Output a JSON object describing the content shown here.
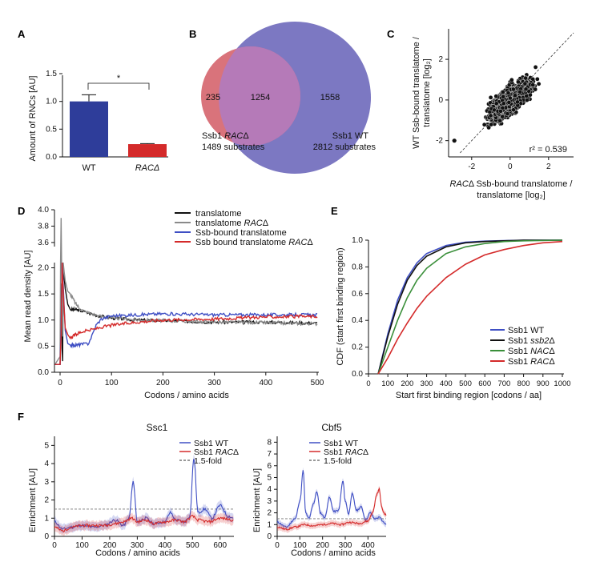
{
  "panels": {
    "A": {
      "label": "A",
      "ylabel": "Amount of RNCs [AU]",
      "significance": "*",
      "yticks": [
        "0.0",
        "0.5",
        "1.0",
        "1.5"
      ],
      "chart_data": {
        "type": "bar",
        "categories": [
          "WT",
          "RACΔ"
        ],
        "values": [
          1.0,
          0.23
        ],
        "errors": [
          0.12,
          0.01
        ],
        "colors": [
          "#2e3d9a",
          "#d42a2a"
        ],
        "ylim": [
          0,
          1.5
        ]
      }
    },
    "B": {
      "label": "B",
      "venn": {
        "left_only": "235",
        "overlap": "1254",
        "right_only": "1558"
      },
      "left_name_pre": "Ssb1 ",
      "left_name_it": "RAC",
      "left_name_post": "Δ",
      "left_count": "1489 substrates",
      "right_name": "Ssb1 WT",
      "right_count": "2812 substrates",
      "colors": {
        "left": "#d9737b",
        "right": "#7c78c2",
        "overlap": "#b57ab8"
      }
    },
    "C": {
      "label": "C",
      "ylabel1": "WT Ssb-bound translatome /",
      "ylabel2": "translatome [log₂]",
      "xlabel1_it": "RAC",
      "xlabel1_rest": "Δ Ssb-bound translatome /",
      "xlabel2": "translatome [log₂]",
      "r2": "r² = 0.539",
      "xticks": [
        "-2",
        "0",
        "2"
      ],
      "yticks": [
        "-2",
        "0",
        "2"
      ],
      "chart_data": {
        "type": "scatter",
        "xlim": [
          -3.2,
          3.3
        ],
        "ylim": [
          -2.8,
          3.5
        ],
        "n_points": 1254,
        "r2": 0.539,
        "outlier": [
          -2.9,
          -2.0
        ]
      }
    },
    "D": {
      "label": "D",
      "ylabel": "Mean read density [AU]",
      "xlabel": "Codons / amino acids",
      "xticks": [
        "0",
        "100",
        "200",
        "300",
        "400",
        "500"
      ],
      "yticks_low": [
        "0.0",
        "0.5",
        "1.0",
        "1.5",
        "2.0"
      ],
      "yticks_high": [
        "3.6",
        "3.8",
        "4.0"
      ],
      "legend": [
        {
          "pre": "translatome",
          "it": "",
          "post": ""
        },
        {
          "pre": "translatome ",
          "it": "RAC",
          "post": "Δ"
        },
        {
          "pre": "Ssb-bound translatome",
          "it": "",
          "post": ""
        },
        {
          "pre": "Ssb bound translatome ",
          "it": "RAC",
          "post": "Δ"
        }
      ],
      "chart_data": {
        "type": "line",
        "xlim": [
          -10,
          500
        ],
        "series": [
          {
            "color": "#111111",
            "x": [
              -10,
              0,
              2,
              4,
              6,
              10,
              15,
              20,
              30,
              40,
              60,
              80,
              100,
              150,
              200,
              300,
              400,
              500
            ],
            "y": [
              0.15,
              0.15,
              1.1,
              2.3,
              2.0,
              1.6,
              1.3,
              1.2,
              1.2,
              1.18,
              1.12,
              1.07,
              1.04,
              1.0,
              0.99,
              0.96,
              0.96,
              0.94
            ]
          },
          {
            "color": "#8a8a8a",
            "x": [
              -10,
              0,
              2,
              4,
              6,
              10,
              15,
              20,
              30,
              40,
              60,
              80,
              100,
              150,
              200,
              300,
              400,
              500
            ],
            "y": [
              0.15,
              0.3,
              3.9,
              2.8,
              2.1,
              1.75,
              1.55,
              1.5,
              1.32,
              1.2,
              1.12,
              1.07,
              1.04,
              1.0,
              0.99,
              0.96,
              0.95,
              0.93
            ]
          },
          {
            "color": "#3f4fc4",
            "x": [
              -10,
              0,
              2,
              4,
              6,
              10,
              15,
              20,
              30,
              40,
              55,
              62,
              70,
              80,
              100,
              150,
              200,
              300,
              400,
              500
            ],
            "y": [
              0.15,
              0.15,
              0.9,
              2.1,
              1.7,
              0.8,
              0.55,
              0.52,
              0.52,
              0.53,
              0.55,
              0.7,
              0.9,
              1.02,
              1.08,
              1.1,
              1.12,
              1.1,
              1.1,
              1.1
            ]
          },
          {
            "color": "#d42a2a",
            "x": [
              -10,
              0,
              2,
              4,
              6,
              10,
              15,
              20,
              30,
              40,
              60,
              80,
              100,
              150,
              200,
              300,
              400,
              500
            ],
            "y": [
              0.15,
              0.15,
              0.7,
              2.1,
              1.55,
              0.85,
              0.72,
              0.65,
              0.72,
              0.77,
              0.81,
              0.86,
              0.9,
              0.96,
              1.0,
              1.02,
              1.06,
              1.07
            ]
          }
        ]
      }
    },
    "E": {
      "label": "E",
      "ylabel": "CDF (start first binding region)",
      "xlabel": "Start first binding region [codons / aa]",
      "xticks": [
        "0",
        "100",
        "200",
        "300",
        "400",
        "500",
        "600",
        "700",
        "800",
        "900",
        "1000"
      ],
      "yticks": [
        "0.0",
        "0.2",
        "0.4",
        "0.6",
        "0.8",
        "1.0"
      ],
      "legend": [
        {
          "pre": "Ssb1 WT",
          "it": "",
          "post": ""
        },
        {
          "pre": "Ssb1 ",
          "it": "ssb2",
          "post": "Δ"
        },
        {
          "pre": "Ssb1 ",
          "it": "NAC",
          "post": "Δ"
        },
        {
          "pre": "Ssb1 ",
          "it": "RAC",
          "post": "Δ"
        }
      ],
      "chart_data": {
        "type": "line",
        "xlim": [
          0,
          1000
        ],
        "ylim": [
          0,
          1
        ],
        "series": [
          {
            "color": "#3f4fc4",
            "x": [
              50,
              100,
              150,
              200,
              250,
              300,
              400,
              500,
              600,
              700,
              800,
              1000
            ],
            "y": [
              0,
              0.3,
              0.55,
              0.72,
              0.83,
              0.9,
              0.96,
              0.985,
              0.993,
              0.997,
              1.0,
              1.0
            ]
          },
          {
            "color": "#111111",
            "x": [
              50,
              100,
              150,
              200,
              250,
              300,
              400,
              500,
              600,
              700,
              800,
              1000
            ],
            "y": [
              0,
              0.28,
              0.52,
              0.7,
              0.81,
              0.88,
              0.95,
              0.98,
              0.99,
              0.995,
              1.0,
              1.0
            ]
          },
          {
            "color": "#3a8f3a",
            "x": [
              50,
              100,
              150,
              200,
              250,
              300,
              400,
              500,
              600,
              700,
              800,
              1000
            ],
            "y": [
              0,
              0.2,
              0.4,
              0.57,
              0.7,
              0.79,
              0.9,
              0.95,
              0.975,
              0.99,
              0.995,
              1.0
            ]
          },
          {
            "color": "#d42a2a",
            "x": [
              50,
              100,
              150,
              200,
              250,
              300,
              400,
              500,
              600,
              700,
              800,
              900,
              1000
            ],
            "y": [
              0,
              0.12,
              0.26,
              0.38,
              0.49,
              0.58,
              0.72,
              0.82,
              0.89,
              0.93,
              0.96,
              0.98,
              0.99
            ]
          }
        ]
      }
    },
    "F": {
      "label": "F",
      "left": {
        "title": "Ssc1",
        "ylabel": "Enrichment [AU]",
        "xlabel": "Codons / amino acids",
        "xticks": [
          "0",
          "100",
          "200",
          "300",
          "400",
          "500",
          "600"
        ],
        "yticks": [
          "0",
          "1",
          "2",
          "3",
          "4",
          "5"
        ],
        "legend": [
          {
            "pre": "Ssb1 WT",
            "it": "",
            "post": ""
          },
          {
            "pre": "Ssb1 ",
            "it": "RAC",
            "post": "Δ"
          },
          {
            "pre": "1.5-fold",
            "it": "",
            "post": ""
          }
        ],
        "chart_data": {
          "type": "line",
          "xlim": [
            0,
            650
          ],
          "ylim": [
            0,
            5.5
          ],
          "threshold": 1.5,
          "series": [
            {
              "color": "#3f4fc4",
              "x": [
                0,
                30,
                60,
                100,
                140,
                180,
                220,
                250,
                270,
                285,
                300,
                330,
                360,
                400,
                420,
                440,
                470,
                490,
                505,
                520,
                545,
                570,
                600,
                630,
                650
              ],
              "y": [
                0.8,
                0.4,
                0.5,
                0.6,
                0.5,
                0.6,
                0.9,
                0.6,
                1.0,
                3.0,
                0.8,
                1.0,
                0.7,
                0.8,
                1.3,
                0.9,
                0.8,
                1.1,
                4.3,
                1.3,
                1.5,
                1.0,
                1.7,
                1.1,
                1.0
              ]
            },
            {
              "color": "#d42a2a",
              "x": [
                0,
                30,
                60,
                100,
                140,
                180,
                220,
                250,
                280,
                300,
                330,
                360,
                400,
                440,
                470,
                500,
                520,
                560,
                600,
                650
              ],
              "y": [
                0.5,
                0.3,
                0.5,
                0.6,
                0.6,
                0.6,
                0.7,
                0.8,
                1.0,
                0.8,
                0.9,
                0.7,
                0.8,
                0.9,
                0.8,
                1.1,
                0.9,
                0.8,
                1.0,
                0.9
              ]
            }
          ]
        }
      },
      "right": {
        "title": "Cbf5",
        "ylabel": "Enrichment [AU]",
        "xlabel": "Codons / amino acids",
        "xticks": [
          "0",
          "100",
          "200",
          "300",
          "400"
        ],
        "yticks": [
          "0",
          "1",
          "2",
          "3",
          "4",
          "5",
          "6",
          "7",
          "8"
        ],
        "legend": [
          {
            "pre": "Ssb1 WT",
            "it": "",
            "post": ""
          },
          {
            "pre": "Ssb1 ",
            "it": "RAC",
            "post": "Δ"
          },
          {
            "pre": "1.5-fold",
            "it": "",
            "post": ""
          }
        ],
        "chart_data": {
          "type": "line",
          "xlim": [
            0,
            480
          ],
          "ylim": [
            0,
            8.5
          ],
          "threshold": 1.5,
          "series": [
            {
              "color": "#3f4fc4",
              "x": [
                0,
                40,
                80,
                100,
                115,
                125,
                140,
                160,
                175,
                190,
                210,
                230,
                250,
                270,
                290,
                300,
                315,
                330,
                350,
                370,
                390,
                410,
                430,
                450,
                470,
                480
              ],
              "y": [
                1.2,
                0.8,
                1.5,
                3.0,
                5.6,
                2.0,
                1.5,
                2.8,
                3.8,
                2.0,
                1.6,
                3.3,
                2.1,
                2.2,
                4.7,
                3.0,
                1.9,
                3.6,
                2.2,
                2.5,
                1.4,
                2.0,
                1.5,
                1.6,
                1.2,
                1.0
              ]
            },
            {
              "color": "#d42a2a",
              "x": [
                0,
                40,
                80,
                120,
                160,
                200,
                240,
                280,
                320,
                360,
                400,
                420,
                440,
                450,
                460,
                470,
                480
              ],
              "y": [
                0.8,
                0.6,
                0.8,
                1.0,
                0.9,
                1.0,
                1.1,
                1.0,
                1.2,
                1.1,
                1.3,
                2.0,
                3.6,
                4.0,
                2.5,
                2.0,
                1.8
              ]
            }
          ]
        }
      }
    }
  }
}
